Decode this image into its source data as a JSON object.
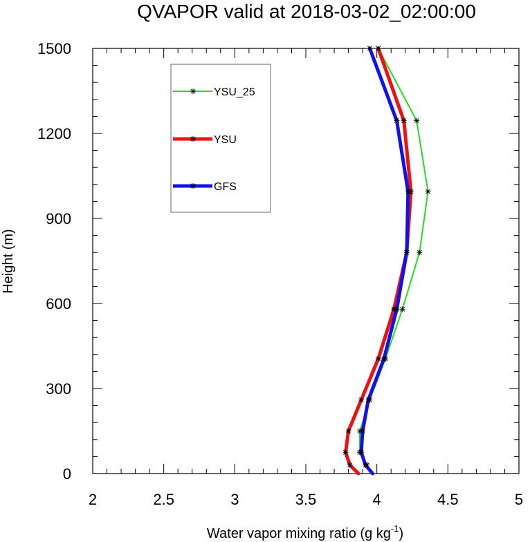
{
  "chart_data": {
    "type": "line",
    "title": "QVAPOR valid at 2018-03-02_02:00:00",
    "xlabel": "Water vapor mixing ratio (g kg",
    "xlabel_sup": "-1",
    "xlabel_end": ")",
    "ylabel": "Height (m)",
    "xlim": [
      2,
      5
    ],
    "ylim": [
      0,
      1500
    ],
    "xticks": [
      "2",
      "2.5",
      "3",
      "3.5",
      "4",
      "4.5",
      "5"
    ],
    "yticks": [
      "0",
      "300",
      "600",
      "900",
      "1200",
      "1500"
    ],
    "grid": false,
    "legend_position": "top-left",
    "series": [
      {
        "name": "YSU_25",
        "color": "#22dd22",
        "x": [
          3.96,
          3.93,
          3.88,
          3.88,
          3.95,
          4.06,
          4.18,
          4.3,
          4.36,
          4.28,
          4.01
        ],
        "y": [
          0,
          30,
          75,
          150,
          260,
          405,
          580,
          780,
          995,
          1245,
          1500
        ]
      },
      {
        "name": "YSU",
        "color": "#ee1111",
        "x": [
          3.87,
          3.81,
          3.78,
          3.8,
          3.89,
          4.01,
          4.12,
          4.21,
          4.24,
          4.19,
          4.01
        ],
        "y": [
          0,
          30,
          75,
          150,
          260,
          405,
          580,
          780,
          995,
          1245,
          1500
        ]
      },
      {
        "name": "GFS",
        "color": "#1111ee",
        "x": [
          3.97,
          3.92,
          3.89,
          3.9,
          3.94,
          4.05,
          4.14,
          4.21,
          4.22,
          4.14,
          3.95
        ],
        "y": [
          0,
          30,
          75,
          150,
          260,
          405,
          580,
          780,
          995,
          1245,
          1500
        ]
      }
    ]
  }
}
